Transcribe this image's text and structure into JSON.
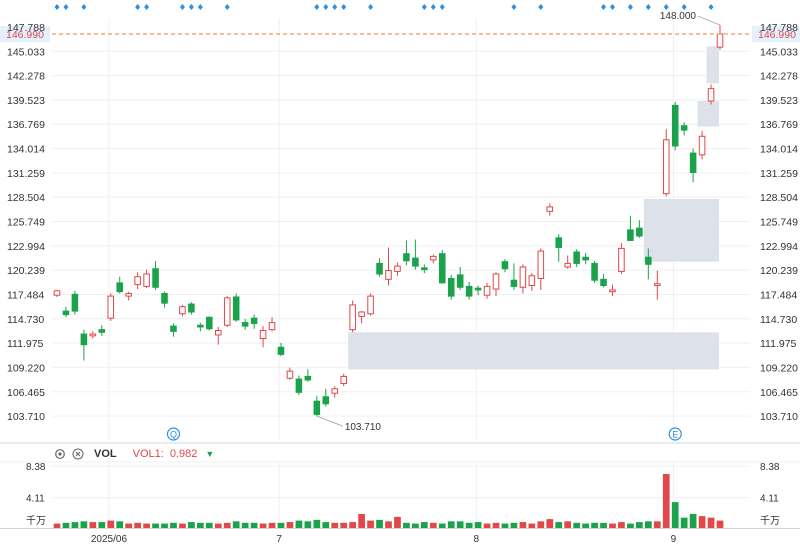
{
  "chart_data": {
    "type": "candlestick",
    "price_axis": {
      "ticks": [
        "145.033",
        "142.278",
        "139.523",
        "136.769",
        "134.014",
        "131.259",
        "128.504",
        "125.749",
        "122.994",
        "120.239",
        "117.484",
        "114.730",
        "111.975",
        "109.220",
        "106.465",
        "103.710"
      ],
      "top_partial_tick": "147.788",
      "range": [
        101.0,
        148.8
      ]
    },
    "last_price": {
      "value": 146.99,
      "label": "146.990",
      "color": "#f08030"
    },
    "annotations": [
      {
        "label": "148.000",
        "value": 148.0,
        "kind": "high"
      },
      {
        "label": "103.710",
        "value": 103.71,
        "kind": "low"
      }
    ],
    "markers": [
      {
        "label": "Q",
        "index": 13
      },
      {
        "label": "E",
        "index": 69
      }
    ],
    "x_axis_labels": [
      {
        "label": "2025/06",
        "index": 6
      },
      {
        "label": "7",
        "index": 25
      },
      {
        "label": "8",
        "index": 47
      },
      {
        "label": "9",
        "index": 69
      }
    ],
    "gaps": [
      {
        "from_index": 33,
        "low": 109.0,
        "high": 113.2
      },
      {
        "from_index": 66,
        "low": 121.2,
        "high": 128.3
      },
      {
        "from_index": 72,
        "low": 136.5,
        "high": 139.4
      },
      {
        "from_index": 73,
        "low": 141.4,
        "high": 145.6
      }
    ],
    "candles": [
      {
        "o": 117.4,
        "h": 118.0,
        "l": 117.2,
        "c": 117.9
      },
      {
        "o": 115.6,
        "h": 116.1,
        "l": 114.9,
        "c": 115.2
      },
      {
        "o": 117.5,
        "h": 117.9,
        "l": 115.2,
        "c": 115.6
      },
      {
        "o": 113.0,
        "h": 113.5,
        "l": 110.0,
        "c": 111.8
      },
      {
        "o": 112.8,
        "h": 113.3,
        "l": 112.5,
        "c": 113.0
      },
      {
        "o": 113.5,
        "h": 114.0,
        "l": 112.8,
        "c": 113.2
      },
      {
        "o": 114.8,
        "h": 117.6,
        "l": 114.5,
        "c": 117.3
      },
      {
        "o": 118.8,
        "h": 119.5,
        "l": 117.6,
        "c": 117.8
      },
      {
        "o": 117.3,
        "h": 117.8,
        "l": 116.8,
        "c": 117.6
      },
      {
        "o": 118.6,
        "h": 120.0,
        "l": 118.1,
        "c": 119.5
      },
      {
        "o": 118.4,
        "h": 120.3,
        "l": 118.2,
        "c": 119.8
      },
      {
        "o": 120.4,
        "h": 121.3,
        "l": 118.0,
        "c": 118.3
      },
      {
        "o": 117.6,
        "h": 117.8,
        "l": 116.0,
        "c": 116.5
      },
      {
        "o": 113.9,
        "h": 114.2,
        "l": 112.7,
        "c": 113.3
      },
      {
        "o": 115.3,
        "h": 116.3,
        "l": 115.0,
        "c": 116.1
      },
      {
        "o": 116.4,
        "h": 116.6,
        "l": 115.2,
        "c": 115.5
      },
      {
        "o": 114.0,
        "h": 114.3,
        "l": 113.3,
        "c": 113.8
      },
      {
        "o": 114.9,
        "h": 115.0,
        "l": 113.4,
        "c": 113.6
      },
      {
        "o": 112.9,
        "h": 113.8,
        "l": 111.8,
        "c": 113.4
      },
      {
        "o": 114.0,
        "h": 117.3,
        "l": 113.8,
        "c": 117.1
      },
      {
        "o": 117.2,
        "h": 117.6,
        "l": 114.4,
        "c": 114.6
      },
      {
        "o": 114.3,
        "h": 114.7,
        "l": 113.5,
        "c": 113.9
      },
      {
        "o": 114.8,
        "h": 115.2,
        "l": 113.6,
        "c": 114.2
      },
      {
        "o": 112.5,
        "h": 113.9,
        "l": 111.5,
        "c": 113.4
      },
      {
        "o": 113.5,
        "h": 114.9,
        "l": 113.3,
        "c": 114.3
      },
      {
        "o": 111.5,
        "h": 112.0,
        "l": 110.5,
        "c": 110.7
      },
      {
        "o": 108.0,
        "h": 109.2,
        "l": 107.8,
        "c": 108.8
      },
      {
        "o": 107.9,
        "h": 108.3,
        "l": 106.1,
        "c": 106.4
      },
      {
        "o": 108.2,
        "h": 109.0,
        "l": 107.6,
        "c": 107.8
      },
      {
        "o": 105.4,
        "h": 106.0,
        "l": 103.7,
        "c": 103.9
      },
      {
        "o": 105.9,
        "h": 106.8,
        "l": 104.8,
        "c": 105.1
      },
      {
        "o": 106.3,
        "h": 107.1,
        "l": 105.8,
        "c": 106.8
      },
      {
        "o": 107.4,
        "h": 108.5,
        "l": 107.1,
        "c": 108.2
      },
      {
        "o": 113.5,
        "h": 116.8,
        "l": 113.2,
        "c": 116.3
      },
      {
        "o": 115.0,
        "h": 115.6,
        "l": 114.2,
        "c": 115.5
      },
      {
        "o": 115.3,
        "h": 117.6,
        "l": 115.1,
        "c": 117.3
      },
      {
        "o": 121.0,
        "h": 121.6,
        "l": 119.5,
        "c": 119.8
      },
      {
        "o": 119.2,
        "h": 122.8,
        "l": 118.5,
        "c": 120.2
      },
      {
        "o": 120.1,
        "h": 121.1,
        "l": 119.6,
        "c": 120.7
      },
      {
        "o": 122.1,
        "h": 123.6,
        "l": 120.8,
        "c": 121.3
      },
      {
        "o": 121.6,
        "h": 123.7,
        "l": 120.3,
        "c": 120.7
      },
      {
        "o": 120.5,
        "h": 120.9,
        "l": 119.9,
        "c": 120.3
      },
      {
        "o": 121.4,
        "h": 122.0,
        "l": 121.0,
        "c": 121.8
      },
      {
        "o": 122.1,
        "h": 122.5,
        "l": 118.7,
        "c": 118.8
      },
      {
        "o": 119.3,
        "h": 119.7,
        "l": 116.9,
        "c": 117.3
      },
      {
        "o": 119.7,
        "h": 120.6,
        "l": 118.0,
        "c": 118.3
      },
      {
        "o": 118.4,
        "h": 118.9,
        "l": 116.9,
        "c": 117.3
      },
      {
        "o": 118.2,
        "h": 118.5,
        "l": 117.4,
        "c": 118.0
      },
      {
        "o": 117.4,
        "h": 118.8,
        "l": 117.0,
        "c": 118.4
      },
      {
        "o": 118.1,
        "h": 120.0,
        "l": 117.3,
        "c": 119.8
      },
      {
        "o": 121.2,
        "h": 121.5,
        "l": 120.0,
        "c": 120.4
      },
      {
        "o": 119.1,
        "h": 121.0,
        "l": 118.0,
        "c": 118.4
      },
      {
        "o": 118.3,
        "h": 120.9,
        "l": 117.6,
        "c": 120.6
      },
      {
        "o": 118.5,
        "h": 119.9,
        "l": 117.9,
        "c": 119.6
      },
      {
        "o": 119.3,
        "h": 122.7,
        "l": 118.0,
        "c": 122.4
      },
      {
        "o": 126.9,
        "h": 127.8,
        "l": 126.4,
        "c": 127.4
      },
      {
        "o": 123.9,
        "h": 124.3,
        "l": 121.2,
        "c": 122.8
      },
      {
        "o": 120.6,
        "h": 121.9,
        "l": 120.4,
        "c": 121.0
      },
      {
        "o": 122.3,
        "h": 122.6,
        "l": 120.6,
        "c": 121.0
      },
      {
        "o": 121.7,
        "h": 122.2,
        "l": 120.9,
        "c": 121.4
      },
      {
        "o": 121.0,
        "h": 121.3,
        "l": 118.8,
        "c": 119.1
      },
      {
        "o": 119.2,
        "h": 119.8,
        "l": 118.3,
        "c": 118.5
      },
      {
        "o": 117.8,
        "h": 118.6,
        "l": 117.3,
        "c": 118.0
      },
      {
        "o": 120.1,
        "h": 123.3,
        "l": 119.8,
        "c": 122.7
      },
      {
        "o": 124.8,
        "h": 126.4,
        "l": 123.6,
        "c": 123.6
      },
      {
        "o": 125.0,
        "h": 125.9,
        "l": 123.9,
        "c": 124.1
      },
      {
        "o": 121.7,
        "h": 122.7,
        "l": 119.2,
        "c": 120.9
      },
      {
        "o": 118.5,
        "h": 120.2,
        "l": 116.9,
        "c": 118.7
      },
      {
        "o": 128.9,
        "h": 136.2,
        "l": 128.6,
        "c": 135.0
      },
      {
        "o": 138.9,
        "h": 139.3,
        "l": 133.8,
        "c": 134.3
      },
      {
        "o": 136.6,
        "h": 137.0,
        "l": 135.5,
        "c": 136.1
      },
      {
        "o": 133.5,
        "h": 134.0,
        "l": 130.2,
        "c": 131.3
      },
      {
        "o": 133.3,
        "h": 136.0,
        "l": 132.8,
        "c": 135.4
      },
      {
        "o": 139.4,
        "h": 141.3,
        "l": 139.0,
        "c": 140.8
      },
      {
        "o": 145.5,
        "h": 148.0,
        "l": 145.2,
        "c": 146.99
      }
    ],
    "volume": {
      "indicator": "VOL",
      "vol1_label": "VOL1:",
      "vol1_value": "0.982",
      "unit_label": "千万",
      "ticks": [
        "8.38",
        "4.11"
      ],
      "max": 8.38,
      "values": [
        0.6,
        0.7,
        0.8,
        0.9,
        0.8,
        0.8,
        1.0,
        0.9,
        0.6,
        0.7,
        0.6,
        0.6,
        0.6,
        0.7,
        0.6,
        0.8,
        0.7,
        0.7,
        0.6,
        0.7,
        0.9,
        0.7,
        0.7,
        0.6,
        0.7,
        0.7,
        0.8,
        1.0,
        0.9,
        1.1,
        0.8,
        0.7,
        0.7,
        0.8,
        1.9,
        1.0,
        1.1,
        0.9,
        1.5,
        0.7,
        0.6,
        0.8,
        0.7,
        0.6,
        0.9,
        0.9,
        0.7,
        0.8,
        0.6,
        0.7,
        0.6,
        0.7,
        0.8,
        0.6,
        0.9,
        1.2,
        0.8,
        0.9,
        0.7,
        0.6,
        0.7,
        0.7,
        0.6,
        0.8,
        0.6,
        0.8,
        0.9,
        0.9,
        7.3,
        3.5,
        1.4,
        1.9,
        1.6,
        1.4,
        1.0
      ]
    },
    "colors": {
      "up": "#e0484a",
      "down": "#1aa34a",
      "gap_fill": "#dde2ea",
      "grid": "#eef0f3",
      "marker": "#2e8fdc"
    }
  }
}
